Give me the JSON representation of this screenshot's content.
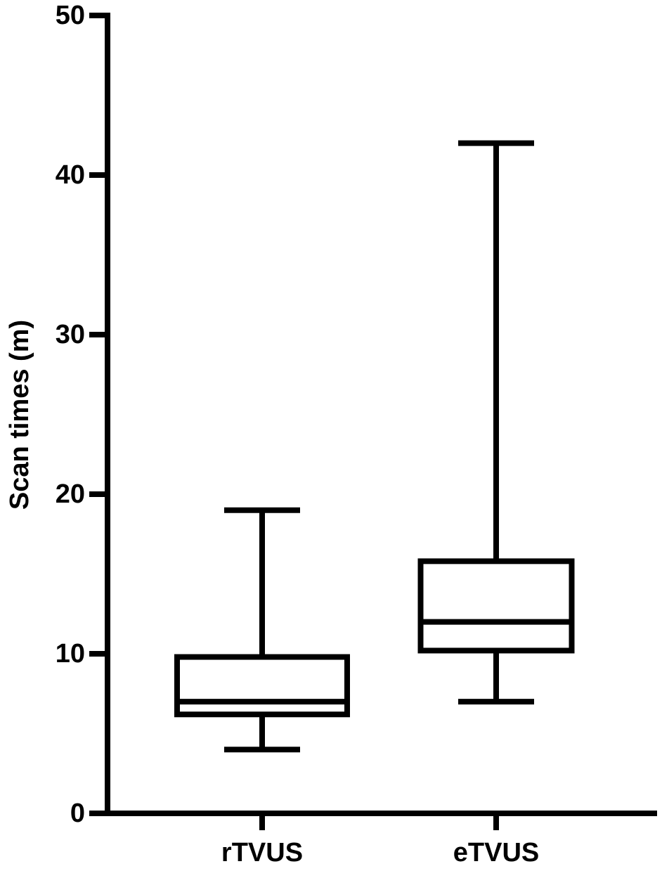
{
  "chart_data": {
    "type": "box",
    "y_label": "Scan times (m)",
    "categories": [
      "rTVUS",
      "eTVUS"
    ],
    "min": [
      4,
      7
    ],
    "q1": [
      6.2,
      10.2
    ],
    "median": [
      7,
      12
    ],
    "q3": [
      9.8,
      15.8
    ],
    "max": [
      19,
      42
    ],
    "color": "#000000",
    "ylim": [
      0,
      50
    ],
    "yticks": [
      0,
      10,
      20,
      30,
      40,
      50
    ],
    "grid": false
  }
}
